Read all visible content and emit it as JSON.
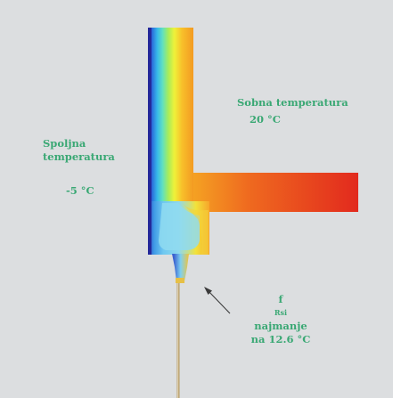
{
  "labels": {
    "outside_line1": "Spoljna",
    "outside_line2": "temperatura",
    "outside_value": "-5 °C",
    "room_line1": "Sobna temperatura",
    "room_value": "20 °C",
    "frsi_symbol": "f",
    "frsi_subscript": "Rsi",
    "frsi_line2": "najmanje",
    "frsi_line3": "na 12.6 °C"
  },
  "colors": {
    "background": "#dcdee0",
    "label_text": "#3aa874",
    "cold": "#1f3fbf",
    "warm": "#e22a1e",
    "leader_line": "#3a3a3a"
  },
  "icons": {
    "leader_arrow": "arrow-pointer-icon"
  }
}
